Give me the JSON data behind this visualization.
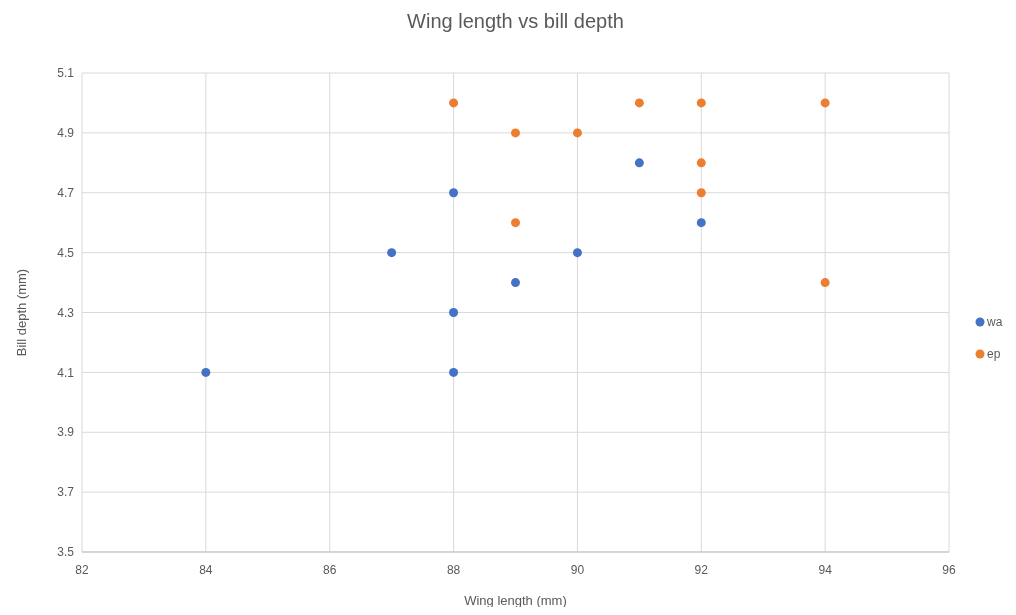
{
  "chart_data": {
    "type": "scatter",
    "title": "Wing length vs bill depth",
    "xlabel": "Wing length (mm)",
    "ylabel": "Bill depth (mm)",
    "xlim": [
      82,
      96
    ],
    "xticks": [
      82,
      84,
      86,
      88,
      90,
      92,
      94,
      96
    ],
    "ylim": [
      3.5,
      5.1
    ],
    "yticks": [
      3.5,
      3.7,
      3.9,
      4.1,
      4.3,
      4.5,
      4.7,
      4.9,
      5.1
    ],
    "grid": true,
    "legend": "right",
    "marker": "circle",
    "series": [
      {
        "name": "wa",
        "color": "#4472c4",
        "x": [
          84,
          87,
          88,
          88,
          88,
          89,
          90,
          91,
          92
        ],
        "values": [
          4.1,
          4.5,
          4.7,
          4.3,
          4.1,
          4.4,
          4.5,
          4.8,
          4.6
        ]
      },
      {
        "name": "ep",
        "color": "#ed7d31",
        "x": [
          88,
          89,
          89,
          90,
          91,
          92,
          92,
          92,
          94,
          94
        ],
        "values": [
          5.0,
          4.9,
          4.6,
          4.9,
          5.0,
          5.0,
          4.8,
          4.7,
          5.0,
          4.4
        ]
      }
    ]
  }
}
